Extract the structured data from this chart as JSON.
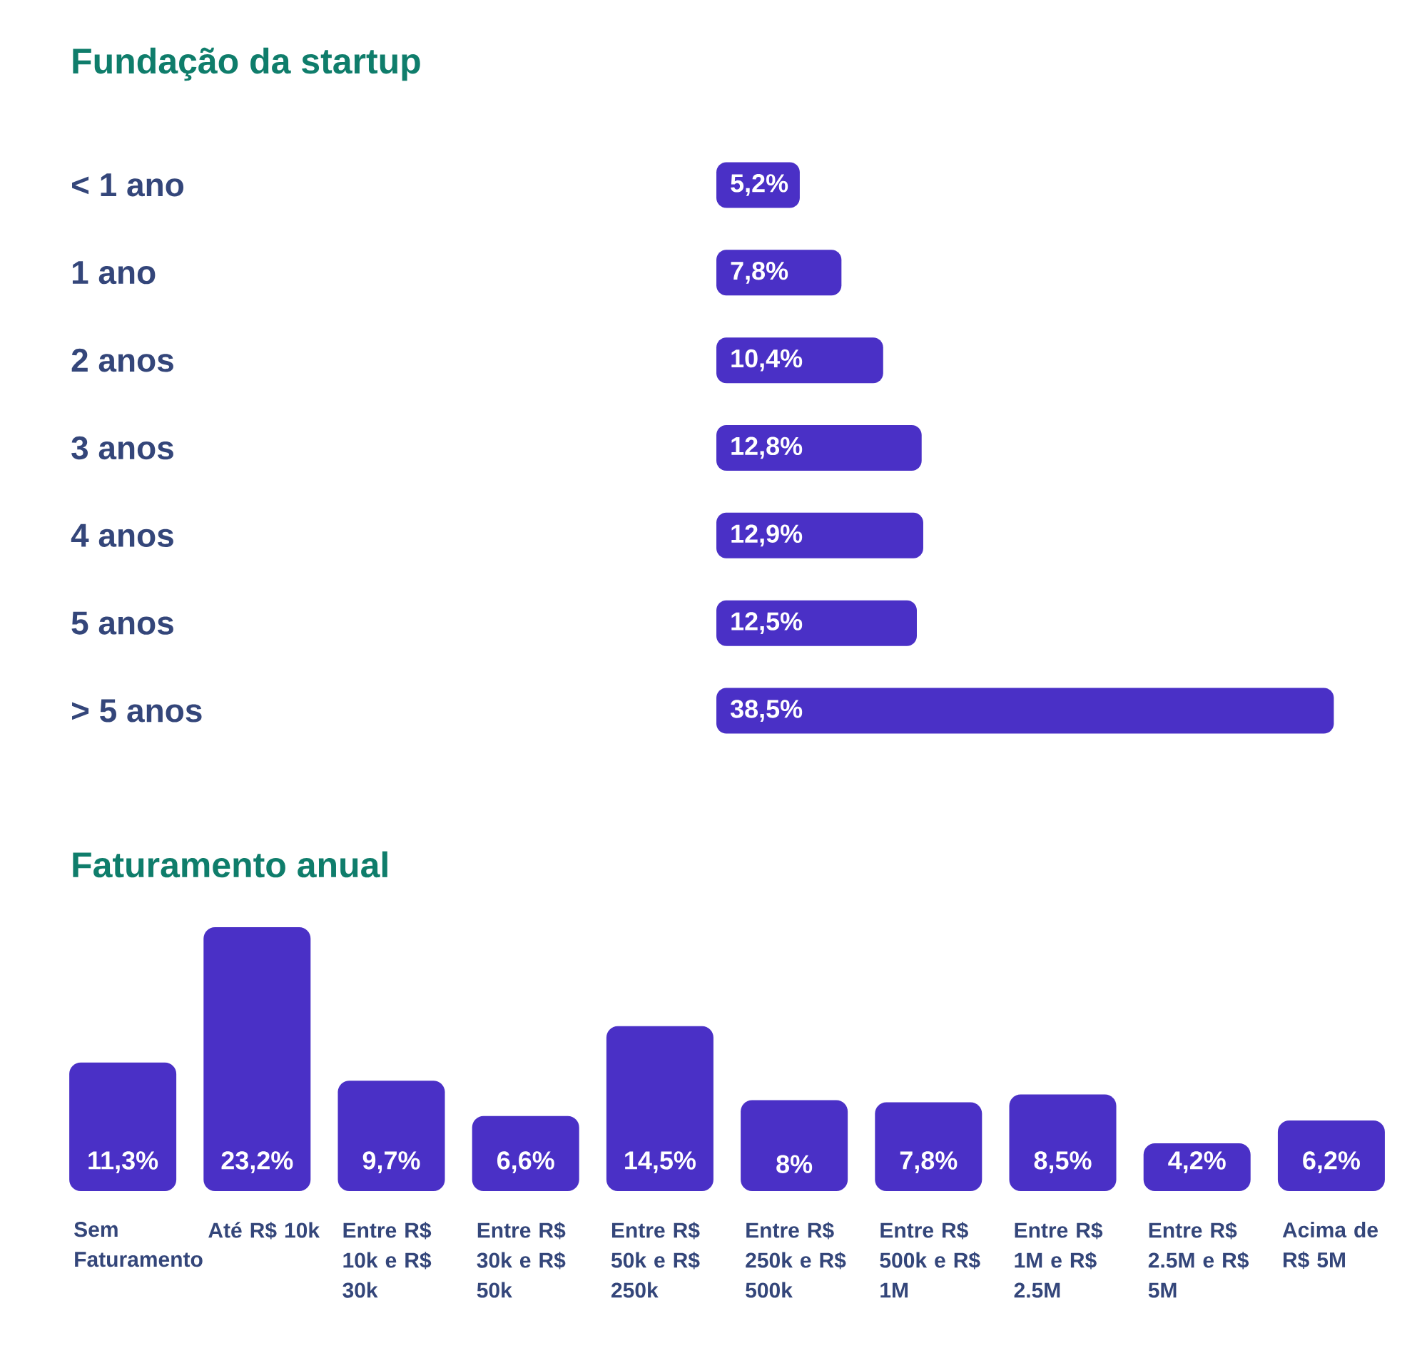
{
  "chart_data": [
    {
      "type": "bar",
      "orientation": "horizontal",
      "title": "Fundação da startup",
      "color": "#4a30c6",
      "categories": [
        "< 1 ano",
        "1 ano",
        "2 anos",
        "3 anos",
        "4 anos",
        "5 anos",
        "> 5 anos"
      ],
      "values": [
        5.2,
        7.8,
        10.4,
        12.8,
        12.9,
        12.5,
        38.5
      ],
      "value_labels": [
        "5,2%",
        "7,8%",
        "10,4%",
        "12,8%",
        "12,9%",
        "12,5%",
        "38,5%"
      ]
    },
    {
      "type": "bar",
      "title": "Faturamento anual",
      "color": "#4a30c6",
      "categories": [
        "Sem Faturamento",
        "Até R$ 10k",
        "Entre R$ 10k e R$ 30k",
        "Entre R$ 30k e R$ 50k",
        "Entre R$ 50k e R$ 250k",
        "Entre R$ 250k e R$ 500k",
        "Entre R$ 500k e R$ 1M",
        "Entre R$ 1M e R$ 2.5M",
        "Entre R$ 2.5M e R$ 5M",
        "Acima de R$ 5M"
      ],
      "values": [
        11.3,
        23.2,
        9.7,
        6.6,
        14.5,
        8,
        7.8,
        8.5,
        4.2,
        6.2
      ],
      "value_labels": [
        "11,3%",
        "23,2%",
        "9,7%",
        "6,6%",
        "14,5%",
        "8%",
        "7,8%",
        "8,5%",
        "4,2%",
        "6,2%"
      ]
    }
  ]
}
